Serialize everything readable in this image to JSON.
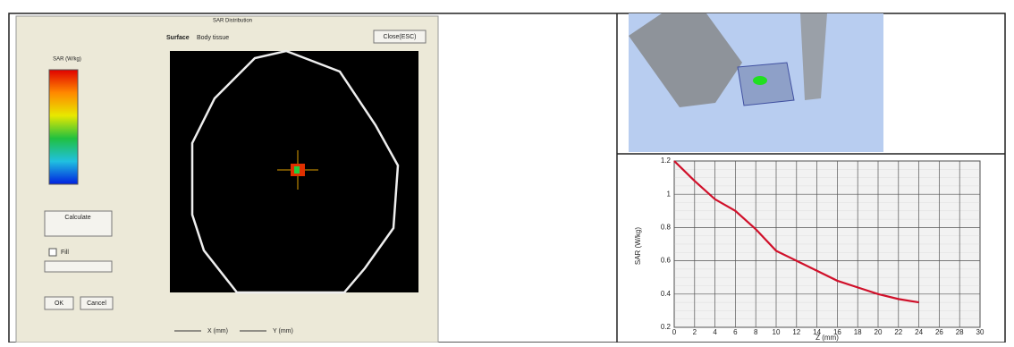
{
  "left_panel": {
    "window_title": "SAR Distribution",
    "field_label": "Surface",
    "field_value": "Body tissue",
    "close_button": "Close(ESC)",
    "legend_title": "SAR (W/kg)",
    "calc_button": "Calculate",
    "fill_label": "Fill",
    "ok_button": "OK",
    "cancel_button": "Cancel",
    "x_unit": "X (mm)",
    "y_unit": "Y (mm)"
  },
  "chart_data": {
    "type": "line",
    "x_label": "Z (mm)",
    "y_label": "SAR (W/kg)",
    "x": [
      0,
      2,
      4,
      6,
      8,
      10,
      12,
      14,
      16,
      18,
      20,
      22,
      24
    ],
    "series": [
      {
        "name": "SAR",
        "color": "#d0102a",
        "values": [
          1.2,
          1.08,
          0.97,
          0.9,
          0.79,
          0.66,
          0.6,
          0.54,
          0.48,
          0.44,
          0.4,
          0.37,
          0.35
        ]
      }
    ],
    "xlim": [
      0,
      30
    ],
    "xticks": [
      0,
      2,
      4,
      6,
      8,
      10,
      12,
      14,
      16,
      18,
      20,
      22,
      24,
      26,
      28,
      30
    ],
    "ylim": [
      0.2,
      1.2
    ],
    "yticks": [
      0.2,
      0.4,
      0.6,
      0.8,
      1.0,
      1.2
    ],
    "grid": true
  }
}
